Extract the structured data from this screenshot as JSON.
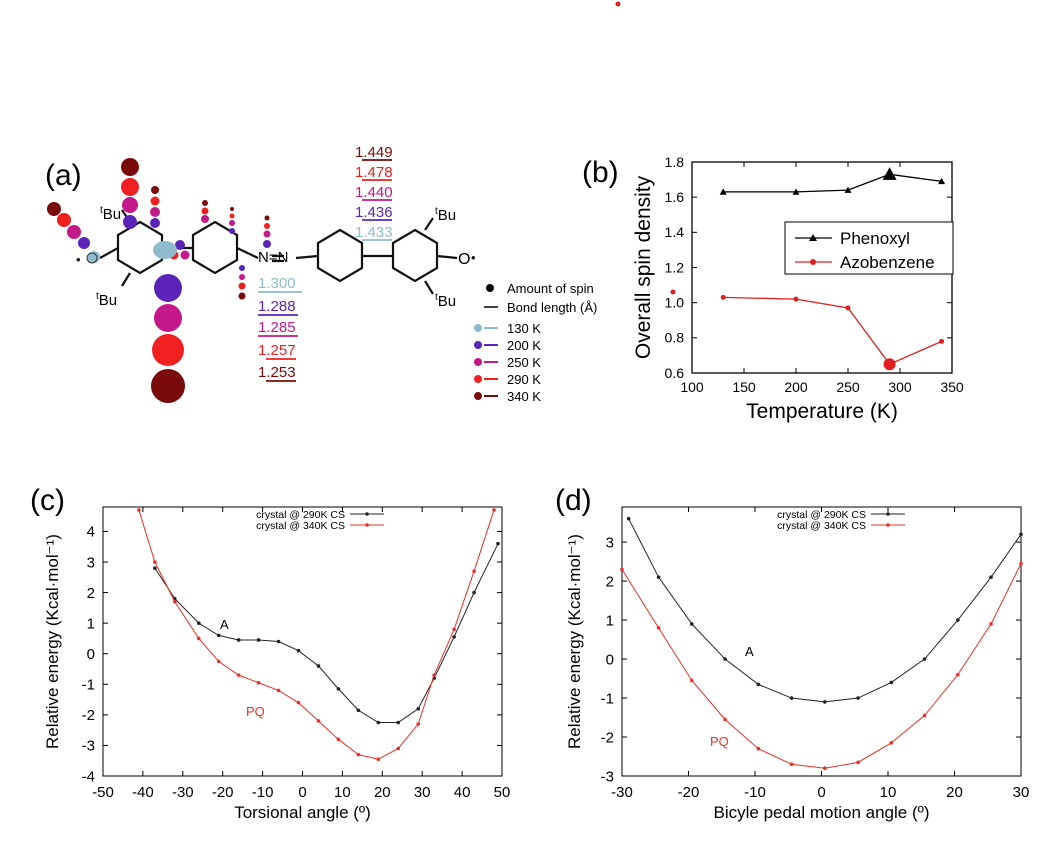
{
  "panels": {
    "a": "(a)",
    "b": "(b)",
    "c": "(c)",
    "d": "(d)"
  },
  "molecule": {
    "tbu": "Bu",
    "tbu_sup": "t",
    "oxygen_left": "O",
    "oxygen_right": "O",
    "azo": "N=N",
    "dot": "•",
    "bond_lengths_upper": [
      "1.449",
      "1.478",
      "1.440",
      "1.436",
      "1.433"
    ],
    "bond_lengths_lower": [
      "1.300",
      "1.288",
      "1.285",
      "1.257",
      "1.253"
    ],
    "legend_spin": "Amount of spin",
    "legend_bond": "Bond length (Å)",
    "temps": [
      "130 K",
      "200 K",
      "250 K",
      "290 K",
      "340 K"
    ],
    "temp_colors": [
      "#8fbccc",
      "#5a24b8",
      "#c4188a",
      "#f02020",
      "#7a0a0a"
    ]
  },
  "chart_data": [
    {
      "type": "line",
      "id": "b",
      "xlabel": "Temperature (K)",
      "ylabel": "Overall spin density",
      "xlim": [
        100,
        350
      ],
      "ylim": [
        0.6,
        1.8
      ],
      "xticks": [
        "100",
        "150",
        "200",
        "250",
        "300",
        "350"
      ],
      "yticks": [
        "0.6",
        "0.8",
        "1.0",
        "1.2",
        "1.4",
        "1.6",
        "1.8"
      ],
      "series": [
        {
          "name": "Phenoxyl",
          "color": "#000000",
          "marker": "triangle",
          "x": [
            130,
            200,
            250,
            290,
            340
          ],
          "y": [
            1.63,
            1.63,
            1.64,
            1.73,
            1.69
          ]
        },
        {
          "name": "Azobenzene",
          "color": "#e02020",
          "marker": "circle",
          "x": [
            130,
            200,
            250,
            290,
            340
          ],
          "y": [
            1.03,
            1.02,
            0.97,
            0.65,
            0.78
          ]
        }
      ]
    },
    {
      "type": "line",
      "id": "c",
      "xlabel": "Torsional angle (º)",
      "ylabel": "Relative energy (Kcal·mol⁻¹)",
      "xlim": [
        -50,
        50
      ],
      "ylim": [
        -4,
        4.8
      ],
      "xticks": [
        "-50",
        "-40",
        "-30",
        "-20",
        "-10",
        "0",
        "10",
        "20",
        "30",
        "40",
        "50"
      ],
      "yticks": [
        "-4",
        "-3",
        "-2",
        "-1",
        "0",
        "1",
        "2",
        "3",
        "4"
      ],
      "annotations": [
        "A",
        "PQ"
      ],
      "series": [
        {
          "name": "crystal @ 290K CS",
          "color": "#222222",
          "x": [
            -37,
            -32,
            -26,
            -21,
            -16,
            -11,
            -6,
            -1,
            4,
            9,
            14,
            19,
            24,
            29,
            33,
            38,
            43,
            49
          ],
          "y": [
            2.8,
            1.8,
            1.0,
            0.6,
            0.45,
            0.45,
            0.4,
            0.1,
            -0.4,
            -1.15,
            -1.85,
            -2.25,
            -2.25,
            -1.8,
            -0.8,
            0.55,
            2.0,
            3.6
          ]
        },
        {
          "name": "crystal @ 340K CS",
          "color": "#e8302a",
          "x": [
            -41,
            -37,
            -32,
            -26,
            -21,
            -16,
            -11,
            -6,
            -1,
            4,
            9,
            14,
            19,
            24,
            29,
            33,
            38,
            43,
            48
          ],
          "y": [
            4.7,
            3.0,
            1.7,
            0.5,
            -0.25,
            -0.7,
            -0.95,
            -1.2,
            -1.6,
            -2.2,
            -2.8,
            -3.3,
            -3.45,
            -3.1,
            -2.3,
            -0.7,
            0.8,
            2.7,
            4.7
          ]
        }
      ]
    },
    {
      "type": "line",
      "id": "d",
      "xlabel": "Bicyle pedal motion angle (º)",
      "ylabel": "Relative energy (Kcal·mol⁻¹)",
      "xlim": [
        -30,
        30
      ],
      "ylim": [
        -3,
        3.9
      ],
      "xticks": [
        "-30",
        "-20",
        "-10",
        "0",
        "10",
        "20",
        "30"
      ],
      "yticks": [
        "-3",
        "-2",
        "-1",
        "0",
        "1",
        "2",
        "3"
      ],
      "annotations": [
        "A",
        "PQ"
      ],
      "series": [
        {
          "name": "crystal @ 290K CS",
          "color": "#222222",
          "x": [
            -29,
            -24.5,
            -19.5,
            -14.5,
            -9.5,
            -4.5,
            0.5,
            5.5,
            10.5,
            15.5,
            20.5,
            25.5,
            30
          ],
          "y": [
            3.6,
            2.1,
            0.9,
            0.0,
            -0.65,
            -1.0,
            -1.1,
            -1.0,
            -0.6,
            0.0,
            1.0,
            2.1,
            3.2
          ]
        },
        {
          "name": "crystal @ 340K CS",
          "color": "#e8302a",
          "x": [
            -30,
            -24.5,
            -19.5,
            -14.5,
            -9.5,
            -4.5,
            0.5,
            5.5,
            10.5,
            15.5,
            20.5,
            25.5,
            30
          ],
          "y": [
            2.3,
            0.8,
            -0.55,
            -1.55,
            -2.3,
            -2.7,
            -2.8,
            -2.65,
            -2.15,
            -1.45,
            -0.4,
            0.9,
            2.45
          ]
        }
      ]
    }
  ]
}
